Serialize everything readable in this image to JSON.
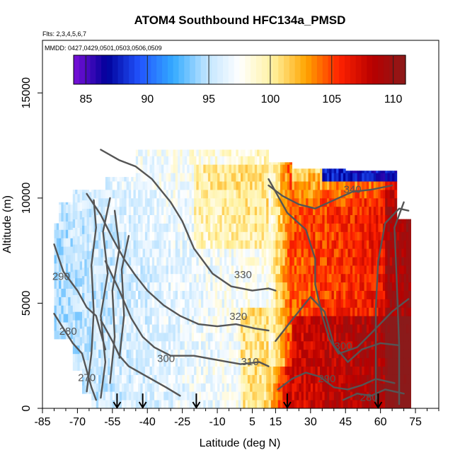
{
  "chart_data": {
    "type": "heatmap",
    "title": "ATOM4 Southbound HFC134a_PMSD",
    "info_flights": "Flts: 2,3,4,5,6,7",
    "info_dates": "MMDD: 0427,0429,0501,0503,0506,0509",
    "xlabel": "Latitude (deg N)",
    "ylabel": "Altitude (m)",
    "xlim": [
      -85,
      85
    ],
    "ylim": [
      0,
      17500
    ],
    "x_ticks": [
      -85,
      -70,
      -55,
      -40,
      -25,
      -10,
      5,
      15,
      30,
      45,
      60,
      75
    ],
    "y_ticks": [
      0,
      5000,
      10000,
      15000
    ],
    "colorbar": {
      "min": 84,
      "max": 111,
      "ticks": [
        85,
        90,
        95,
        100,
        105,
        110
      ],
      "colors": [
        "#7a10d8",
        "#00009a",
        "#2255ff",
        "#33aaff",
        "#bfe4ff",
        "#ffffff",
        "#fff2a0",
        "#ffa500",
        "#ff2200",
        "#b80000",
        "#8b1a1a"
      ]
    },
    "contour_labels": [
      {
        "text": "340",
        "lat": 48,
        "alt": 10250
      },
      {
        "text": "330",
        "lat": 1,
        "alt": 6200
      },
      {
        "text": "320",
        "lat": -1,
        "alt": 4200
      },
      {
        "text": "310",
        "lat": 4,
        "alt": 2050
      },
      {
        "text": "300",
        "lat": -32,
        "alt": 2200
      },
      {
        "text": "300",
        "lat": 44,
        "alt": 2800
      },
      {
        "text": "290",
        "lat": -77,
        "alt": 6100
      },
      {
        "text": "290",
        "lat": 37,
        "alt": 1250
      },
      {
        "text": "280",
        "lat": -74,
        "alt": 3500
      },
      {
        "text": "280",
        "lat": 55,
        "alt": 350
      },
      {
        "text": "270",
        "lat": -66,
        "alt": 1300
      }
    ],
    "flight_markers_lat": [
      -53,
      -42,
      -19,
      20,
      59
    ],
    "grid": false
  }
}
